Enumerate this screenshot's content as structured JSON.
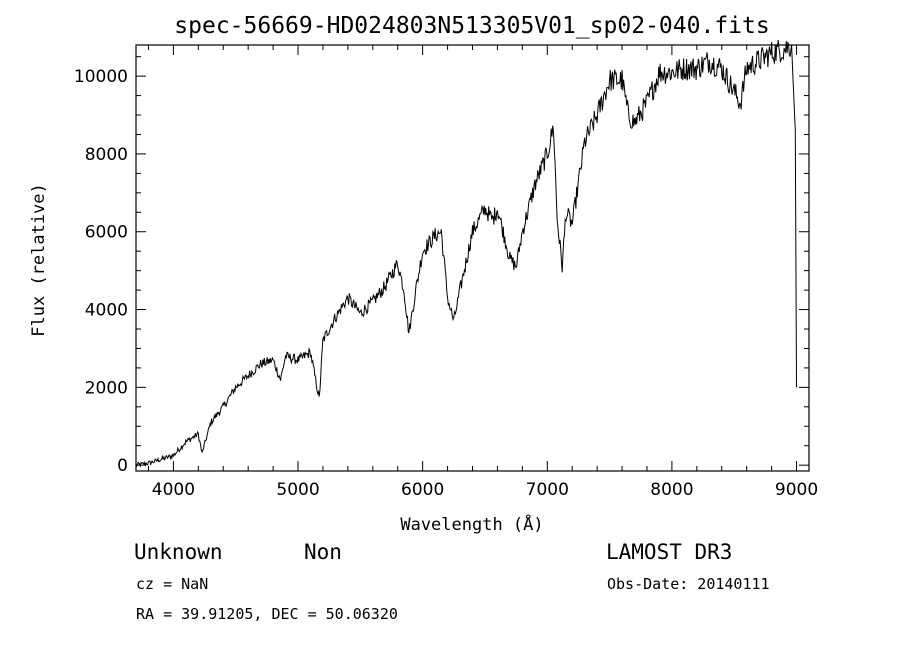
{
  "chart_data": {
    "type": "line",
    "title": "spec-56669-HD024803N513305V01_sp02-040.fits",
    "xlabel": "Wavelength (Å)",
    "ylabel": "Flux (relative)",
    "xlim": [
      3700,
      9100
    ],
    "ylim": [
      -150,
      10800
    ],
    "xticks": [
      "4000",
      "5000",
      "6000",
      "7000",
      "8000",
      "9000"
    ],
    "yticks": [
      "0",
      "2000",
      "4000",
      "6000",
      "8000",
      "10000"
    ],
    "xtick_values": [
      4000,
      5000,
      6000,
      7000,
      8000,
      9000
    ],
    "ytick_values": [
      0,
      2000,
      4000,
      6000,
      8000,
      10000
    ],
    "grid": false,
    "series": [
      {
        "color": "#000000",
        "x": [
          3700,
          3800,
          3900,
          4000,
          4100,
          4200,
          4230,
          4300,
          4400,
          4500,
          4600,
          4700,
          4800,
          4860,
          4900,
          5000,
          5100,
          5170,
          5200,
          5300,
          5400,
          5500,
          5600,
          5700,
          5800,
          5850,
          5890,
          5950,
          6000,
          6100,
          6150,
          6200,
          6250,
          6300,
          6400,
          6500,
          6560,
          6600,
          6700,
          6750,
          6800,
          6900,
          7000,
          7050,
          7080,
          7120,
          7150,
          7200,
          7300,
          7400,
          7500,
          7600,
          7650,
          7700,
          7800,
          7900,
          8000,
          8100,
          8200,
          8300,
          8400,
          8500,
          8550,
          8600,
          8700,
          8800,
          8900,
          8960,
          8990,
          9000
        ],
        "values": [
          0,
          50,
          150,
          250,
          600,
          800,
          300,
          1100,
          1500,
          2000,
          2300,
          2600,
          2700,
          2200,
          2800,
          2700,
          2900,
          1700,
          3200,
          3800,
          4300,
          3900,
          4200,
          4600,
          5200,
          4500,
          3400,
          4600,
          5500,
          5900,
          6000,
          4300,
          3700,
          4500,
          6000,
          6600,
          6300,
          6600,
          5300,
          5100,
          6000,
          7200,
          8000,
          8700,
          6300,
          5100,
          6500,
          6200,
          8300,
          9000,
          9900,
          9900,
          9000,
          8800,
          9300,
          10100,
          10100,
          10200,
          10200,
          10400,
          10200,
          9600,
          9300,
          10200,
          10400,
          10600,
          10700,
          10800,
          8600,
          2000
        ]
      }
    ]
  },
  "footer": {
    "class_label": "Unknown",
    "subclass_label": "Non",
    "survey": "LAMOST DR3",
    "cz": "cz = NaN",
    "obs_date": "Obs-Date: 20140111",
    "coords": "RA =  39.91205, DEC =  50.06320"
  }
}
